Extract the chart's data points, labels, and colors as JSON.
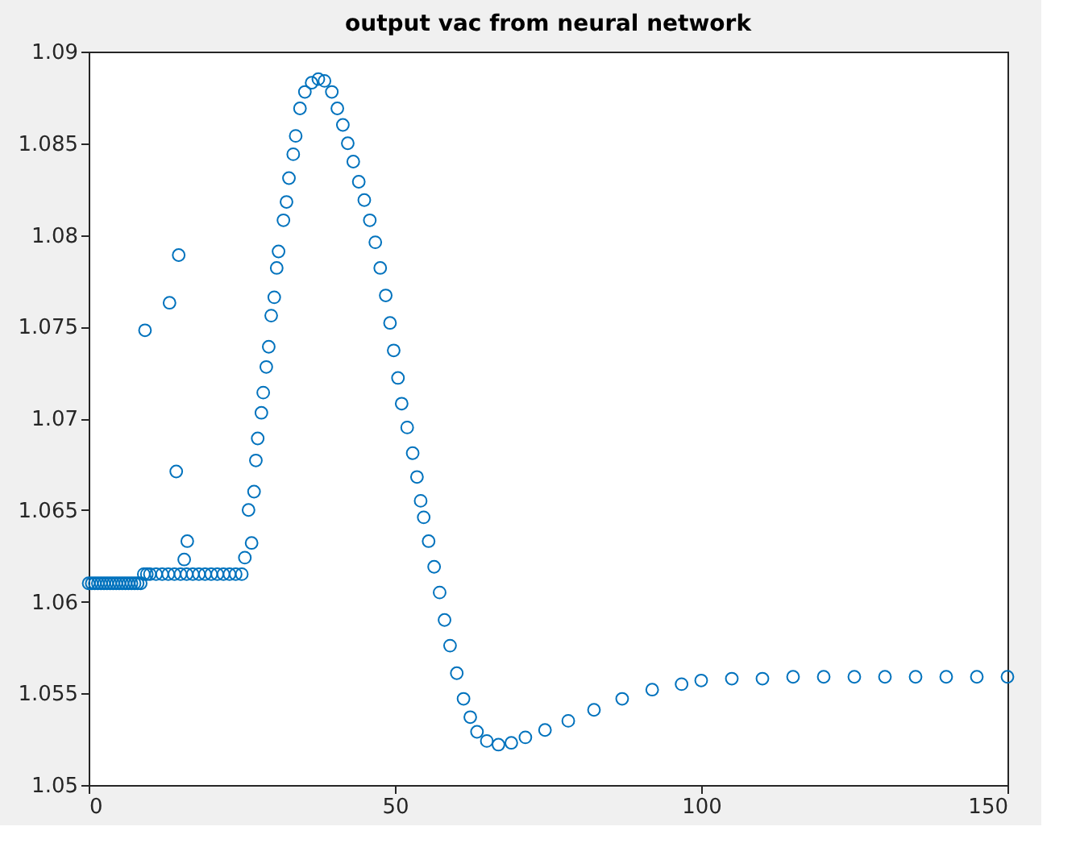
{
  "chart_data": {
    "type": "scatter",
    "title": "output vac from neural network",
    "x": [
      0,
      0.5,
      1,
      1.5,
      2,
      2.5,
      3,
      3.5,
      4,
      4.5,
      5,
      5.5,
      6,
      6.5,
      7,
      7.5,
      8,
      8.5,
      9,
      9.5,
      10,
      11,
      12,
      13,
      14,
      15,
      16,
      17,
      18,
      19,
      20,
      21,
      22,
      23,
      24,
      25,
      9.2,
      13.2,
      14.3,
      14.7,
      15.6,
      16.1,
      25.5,
      26.1,
      26.6,
      27.0,
      27.3,
      27.6,
      28.2,
      28.5,
      29.0,
      29.4,
      29.8,
      30.3,
      30.7,
      31.0,
      31.8,
      32.3,
      32.7,
      33.4,
      33.8,
      34.5,
      35.3,
      36.4,
      37.5,
      38.5,
      39.7,
      40.6,
      41.5,
      42.3,
      43.2,
      44.1,
      45,
      45.9,
      46.8,
      47.6,
      48.5,
      49.2,
      49.8,
      50.5,
      51.1,
      52,
      52.9,
      53.6,
      54.2,
      54.7,
      55.5,
      56.4,
      57.3,
      58.1,
      59.0,
      60.1,
      61.2,
      62.3,
      63.4,
      65,
      66.9,
      69,
      71.3,
      74.5,
      78.3,
      82.5,
      87.1,
      92,
      96.8,
      100,
      105,
      110,
      115,
      120,
      125,
      130,
      135,
      140,
      145,
      150
    ],
    "values": [
      1.061,
      1.061,
      1.061,
      1.061,
      1.061,
      1.061,
      1.061,
      1.061,
      1.061,
      1.061,
      1.061,
      1.061,
      1.061,
      1.061,
      1.061,
      1.061,
      1.061,
      1.061,
      1.0615,
      1.0615,
      1.0615,
      1.0615,
      1.0615,
      1.0615,
      1.0615,
      1.0615,
      1.0615,
      1.0615,
      1.0615,
      1.0615,
      1.0615,
      1.0615,
      1.0615,
      1.0615,
      1.0615,
      1.0615,
      1.0748,
      1.0763,
      1.0671,
      1.0789,
      1.0623,
      1.0633,
      1.0624,
      1.065,
      1.0632,
      1.066,
      1.0677,
      1.0689,
      1.0703,
      1.0714,
      1.0728,
      1.0739,
      1.0756,
      1.0766,
      1.0782,
      1.0791,
      1.0808,
      1.0818,
      1.0831,
      1.0844,
      1.0854,
      1.0869,
      1.0878,
      1.0883,
      1.0885,
      1.0884,
      1.0878,
      1.0869,
      1.086,
      1.085,
      1.084,
      1.0829,
      1.0819,
      1.0808,
      1.0796,
      1.0782,
      1.0767,
      1.0752,
      1.0737,
      1.0722,
      1.0708,
      1.0695,
      1.0681,
      1.0668,
      1.0655,
      1.0646,
      1.0633,
      1.0619,
      1.0605,
      1.059,
      1.0576,
      1.0561,
      1.0547,
      1.0537,
      1.0529,
      1.0524,
      1.0522,
      1.0523,
      1.0526,
      1.053,
      1.0535,
      1.0541,
      1.0547,
      1.0552,
      1.0555,
      1.0557,
      1.0558,
      1.0558,
      1.0559,
      1.0559,
      1.0559,
      1.0559,
      1.0559,
      1.0559,
      1.0559,
      1.0559
    ],
    "color": "#0072bd",
    "marker": "circle",
    "grid": false,
    "xlim": [
      0,
      150
    ],
    "xticks": [
      0,
      50,
      100,
      150
    ],
    "ylim": [
      1.05,
      1.09
    ],
    "yticks": [
      1.05,
      1.055,
      1.06,
      1.065,
      1.07,
      1.075,
      1.08,
      1.085,
      1.09
    ]
  }
}
